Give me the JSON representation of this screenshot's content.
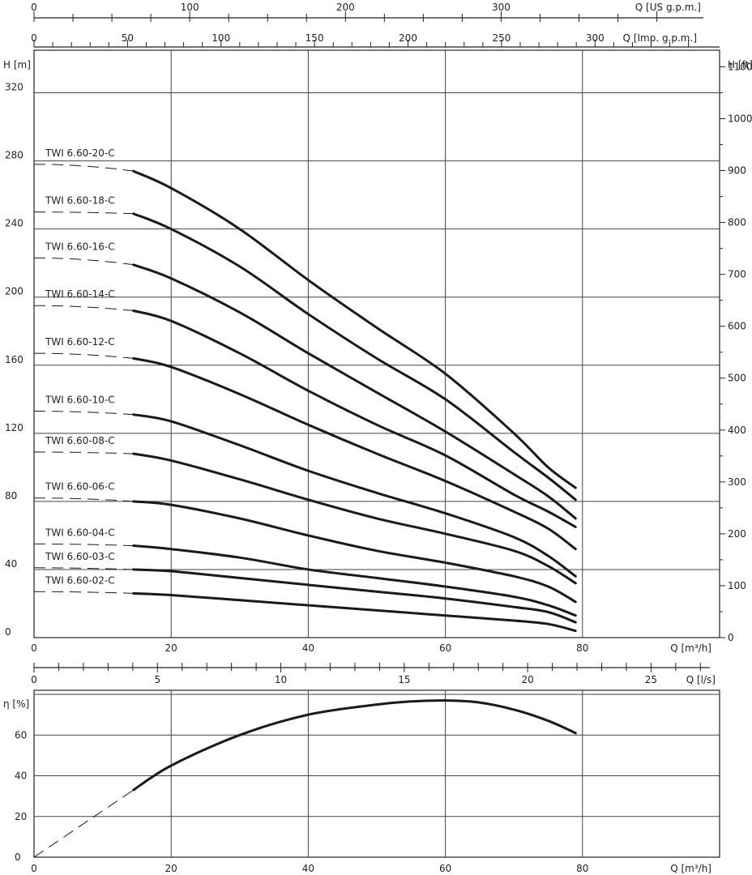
{
  "chart_data": [
    {
      "type": "line",
      "name": "head-curves",
      "xlabel": "Q [m³/h]",
      "ylabel": "H [m]",
      "y2label": "H [ft]",
      "xlim": [
        0,
        100
      ],
      "ylim": [
        0,
        345
      ],
      "x_ticks": [
        0,
        20,
        40,
        60,
        80
      ],
      "y_ticks": [
        0,
        40,
        80,
        120,
        160,
        200,
        240,
        280,
        320
      ],
      "y2_ticks": [
        0,
        100,
        200,
        300,
        400,
        500,
        600,
        700,
        800,
        900,
        1000,
        1100
      ],
      "grid": true,
      "secondary_x_axes": [
        {
          "label": "Q [US g.p.m.]",
          "ticks": [
            0,
            100,
            200,
            300
          ],
          "position": "top"
        },
        {
          "label": "Q [Imp. g.p.m.]",
          "ticks": [
            0,
            50,
            100,
            150,
            200,
            250,
            300
          ],
          "position": "top"
        },
        {
          "label": "Q [l/s]",
          "ticks": [
            0,
            5,
            10,
            15,
            20,
            25
          ],
          "position": "bottom"
        }
      ],
      "series": [
        {
          "name": "TWI 6.60-20-C",
          "shutoff": 278,
          "x": [
            14.5,
            20,
            30,
            40,
            50,
            60,
            70,
            75,
            79
          ],
          "y": [
            274,
            264,
            240,
            210,
            182,
            155,
            120,
            100,
            88
          ]
        },
        {
          "name": "TWI 6.60-18-C",
          "shutoff": 250,
          "x": [
            14.5,
            20,
            30,
            40,
            50,
            60,
            70,
            75,
            79
          ],
          "y": [
            249,
            240,
            218,
            190,
            164,
            140,
            109,
            94,
            81
          ]
        },
        {
          "name": "TWI 6.60-16-C",
          "shutoff": 223,
          "x": [
            14.5,
            20,
            30,
            40,
            50,
            60,
            70,
            75,
            79
          ],
          "y": [
            219,
            211,
            191,
            167,
            144,
            121,
            96,
            83,
            70
          ]
        },
        {
          "name": "TWI 6.60-14-C",
          "shutoff": 195,
          "x": [
            14.5,
            20,
            30,
            40,
            50,
            60,
            70,
            75,
            79
          ],
          "y": [
            192,
            186,
            167,
            145,
            125,
            107,
            84,
            74,
            65
          ]
        },
        {
          "name": "TWI 6.60-12-C",
          "shutoff": 167,
          "x": [
            14.5,
            20,
            30,
            40,
            50,
            60,
            70,
            75,
            79
          ],
          "y": [
            164,
            159,
            143,
            125,
            108,
            92,
            74,
            64,
            52
          ]
        },
        {
          "name": "TWI 6.60-10-C",
          "shutoff": 133,
          "x": [
            14.5,
            20,
            30,
            40,
            50,
            60,
            70,
            75,
            79
          ],
          "y": [
            131,
            127,
            113,
            98,
            85,
            73,
            59,
            48,
            36
          ]
        },
        {
          "name": "TWI 6.60-08-C",
          "shutoff": 109,
          "x": [
            14.5,
            20,
            30,
            40,
            50,
            60,
            70,
            75,
            79
          ],
          "y": [
            108,
            104,
            93,
            81,
            70,
            61,
            51,
            42,
            32
          ]
        },
        {
          "name": "TWI 6.60-06-C",
          "shutoff": 82,
          "x": [
            14.5,
            20,
            30,
            40,
            50,
            60,
            70,
            75,
            79
          ],
          "y": [
            80,
            78,
            70,
            60,
            51,
            44,
            36,
            30,
            21
          ]
        },
        {
          "name": "TWI 6.60-04-C",
          "shutoff": 55,
          "x": [
            14.5,
            20,
            30,
            40,
            50,
            60,
            70,
            75,
            79
          ],
          "y": [
            54,
            52,
            47,
            40,
            35,
            30,
            24,
            19,
            13
          ]
        },
        {
          "name": "TWI 6.60-03-C",
          "shutoff": 41,
          "x": [
            14.5,
            20,
            30,
            40,
            50,
            60,
            70,
            75,
            79
          ],
          "y": [
            40,
            39,
            35,
            31,
            27,
            23,
            18,
            15,
            9
          ]
        },
        {
          "name": "TWI 6.60-02-C",
          "shutoff": 27,
          "x": [
            14.5,
            20,
            30,
            40,
            50,
            60,
            70,
            75,
            79
          ],
          "y": [
            26,
            25,
            22,
            19,
            16,
            13,
            10,
            8,
            4
          ]
        }
      ]
    },
    {
      "type": "line",
      "name": "efficiency-curve",
      "xlabel": "Q [m³/h]",
      "ylabel": "η [%]",
      "xlim": [
        0,
        100
      ],
      "ylim": [
        0,
        82
      ],
      "x_ticks": [
        0,
        20,
        40,
        60,
        80
      ],
      "y_ticks": [
        0,
        20,
        40,
        60
      ],
      "grid": true,
      "series": [
        {
          "x": [
            14.5,
            20,
            30,
            40,
            50,
            55,
            60,
            65,
            70,
            75,
            79
          ],
          "y": [
            33,
            45,
            60,
            70,
            75,
            76.5,
            77,
            76,
            72.5,
            67,
            61
          ],
          "dashed_start": [
            0,
            0
          ]
        }
      ]
    }
  ]
}
